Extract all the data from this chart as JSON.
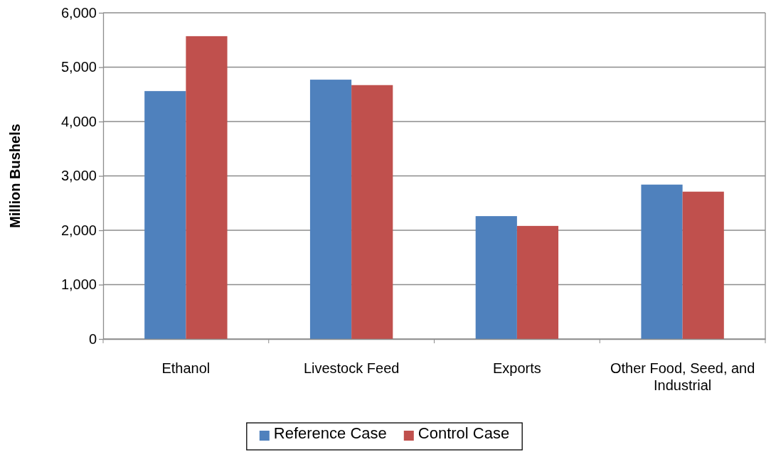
{
  "chart_data": {
    "type": "bar",
    "ylabel": "Million Bushels",
    "categories": [
      "Ethanol",
      "Livestock Feed",
      "Exports",
      "Other Food, Seed, and Industrial"
    ],
    "series": [
      {
        "name": "Reference Case",
        "color": "#4f81bd",
        "values": [
          4560,
          4770,
          2260,
          2840
        ]
      },
      {
        "name": "Control Case",
        "color": "#c0504d",
        "values": [
          5570,
          4670,
          2080,
          2710
        ]
      }
    ],
    "ylim": [
      0,
      6000
    ],
    "yticks": [
      {
        "value": 0,
        "label": "0"
      },
      {
        "value": 1000,
        "label": "1,000"
      },
      {
        "value": 2000,
        "label": "2,000"
      },
      {
        "value": 3000,
        "label": "3,000"
      },
      {
        "value": 4000,
        "label": "4,000"
      },
      {
        "value": 5000,
        "label": "5,000"
      },
      {
        "value": 6000,
        "label": "6,000"
      }
    ],
    "grid": "y",
    "legend": "bottom"
  }
}
